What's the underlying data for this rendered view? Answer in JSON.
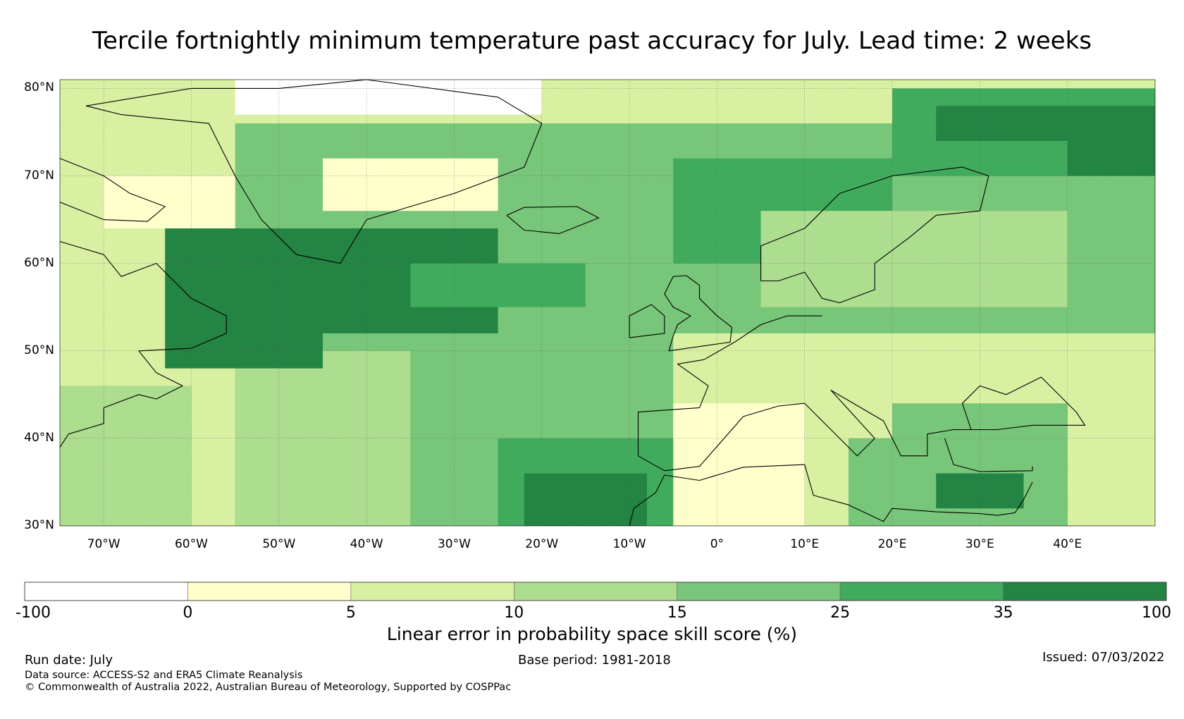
{
  "title": "Tercile fortnightly minimum temperature past accuracy for July. Lead time: 2 weeks",
  "map": {
    "lat_labels": [
      "80°N",
      "70°N",
      "60°N",
      "50°N",
      "40°N",
      "30°N"
    ],
    "lon_labels": [
      "70°W",
      "60°W",
      "50°W",
      "40°W",
      "30°W",
      "20°W",
      "10°W",
      "0°",
      "10°E",
      "20°E",
      "30°E",
      "40°E"
    ],
    "lat_range": [
      30,
      81
    ],
    "lon_range": [
      -75,
      50
    ]
  },
  "colorbar": {
    "title": "Linear error in probability space skill score (%)",
    "boundaries": [
      "-100",
      "0",
      "5",
      "10",
      "15",
      "25",
      "35",
      "100"
    ],
    "colors": [
      "#ffffff",
      "#ffffcc",
      "#d9f0a3",
      "#addd8e",
      "#78c679",
      "#41ab5d",
      "#238443"
    ]
  },
  "footer": {
    "run_date": "Run date: July",
    "base_period": "Base period: 1981-2018",
    "issued": "Issued: 07/03/2022",
    "data_source": "Data source: ACCESS-S2 and ERA5 Climate Reanalysis",
    "copyright": "© Commonwealth of Australia 2022, Australian Bureau of Meteorology, Supported by COSPPac"
  }
}
